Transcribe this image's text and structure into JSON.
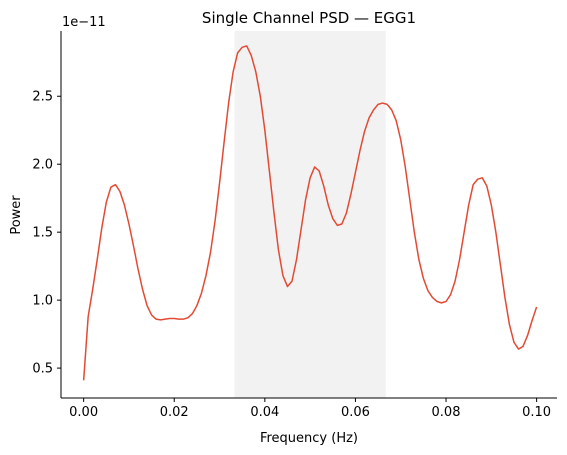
{
  "chart_data": {
    "type": "line",
    "title": "Single Channel PSD — EGG1",
    "xlabel": "Frequency (Hz)",
    "ylabel": "Power",
    "y_offset_label": "1e−11",
    "xlim": [
      -0.005,
      0.1045
    ],
    "ylim": [
      0.28,
      2.98
    ],
    "xticks": [
      0.0,
      0.02,
      0.04,
      0.06,
      0.08,
      0.1
    ],
    "xtick_labels": [
      "0.00",
      "0.02",
      "0.04",
      "0.06",
      "0.08",
      "0.10"
    ],
    "yticks": [
      0.5,
      1.0,
      1.5,
      2.0,
      2.5
    ],
    "ytick_labels": [
      "0.5",
      "1.0",
      "1.5",
      "2.0",
      "2.5"
    ],
    "grid": false,
    "shaded_band": {
      "x_start": 0.0333,
      "x_end": 0.0667,
      "color": "#f2f2f2"
    },
    "series": [
      {
        "color": "#e34a33",
        "x": [
          0.0,
          0.001,
          0.002,
          0.003,
          0.004,
          0.005,
          0.006,
          0.007,
          0.008,
          0.009,
          0.01,
          0.011,
          0.012,
          0.013,
          0.014,
          0.015,
          0.016,
          0.017,
          0.018,
          0.019,
          0.02,
          0.021,
          0.022,
          0.023,
          0.024,
          0.025,
          0.026,
          0.027,
          0.028,
          0.029,
          0.03,
          0.031,
          0.032,
          0.033,
          0.034,
          0.035,
          0.036,
          0.037,
          0.038,
          0.039,
          0.04,
          0.041,
          0.042,
          0.043,
          0.044,
          0.045,
          0.046,
          0.047,
          0.048,
          0.049,
          0.05,
          0.051,
          0.052,
          0.053,
          0.054,
          0.055,
          0.056,
          0.057,
          0.058,
          0.059,
          0.06,
          0.061,
          0.062,
          0.063,
          0.064,
          0.065,
          0.066,
          0.067,
          0.068,
          0.069,
          0.07,
          0.071,
          0.072,
          0.073,
          0.074,
          0.075,
          0.076,
          0.077,
          0.078,
          0.079,
          0.08,
          0.081,
          0.082,
          0.083,
          0.084,
          0.085,
          0.086,
          0.087,
          0.088,
          0.089,
          0.09,
          0.091,
          0.092,
          0.093,
          0.094,
          0.095,
          0.096,
          0.097,
          0.098,
          0.099,
          0.1
        ],
        "values": [
          0.41,
          0.88,
          1.08,
          1.3,
          1.53,
          1.72,
          1.83,
          1.85,
          1.8,
          1.7,
          1.56,
          1.4,
          1.23,
          1.08,
          0.96,
          0.89,
          0.86,
          0.855,
          0.86,
          0.865,
          0.865,
          0.86,
          0.86,
          0.87,
          0.9,
          0.96,
          1.05,
          1.18,
          1.35,
          1.58,
          1.86,
          2.16,
          2.45,
          2.68,
          2.82,
          2.86,
          2.87,
          2.8,
          2.68,
          2.5,
          2.25,
          1.95,
          1.65,
          1.37,
          1.18,
          1.1,
          1.14,
          1.3,
          1.52,
          1.74,
          1.9,
          1.98,
          1.95,
          1.84,
          1.7,
          1.6,
          1.55,
          1.56,
          1.64,
          1.78,
          1.94,
          2.1,
          2.24,
          2.34,
          2.4,
          2.44,
          2.45,
          2.44,
          2.4,
          2.32,
          2.18,
          1.98,
          1.74,
          1.5,
          1.3,
          1.16,
          1.07,
          1.02,
          0.99,
          0.98,
          0.99,
          1.04,
          1.14,
          1.3,
          1.5,
          1.7,
          1.85,
          1.89,
          1.9,
          1.84,
          1.7,
          1.5,
          1.26,
          1.02,
          0.82,
          0.69,
          0.64,
          0.66,
          0.74,
          0.85,
          0.95
        ]
      }
    ]
  }
}
